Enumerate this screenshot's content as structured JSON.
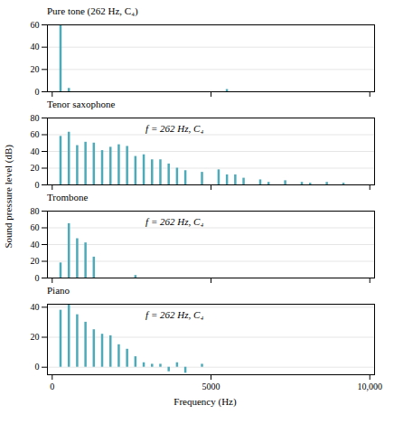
{
  "ylabel": "Sound pressure level (dB)",
  "xlabel": "Frequency (Hz)",
  "chart_data": [
    {
      "type": "bar",
      "title": "Pure tone (262 Hz, C₄)",
      "x": [
        262,
        524,
        5500
      ],
      "values": [
        60,
        3,
        2
      ],
      "color": "#4daab8",
      "xlim": [
        -150,
        10150
      ],
      "xticks": [
        0,
        5000,
        {
          "value": 10000,
          "label": "10,000"
        }
      ],
      "ylim": [
        0,
        60
      ],
      "yticks": [
        0,
        20,
        40,
        60
      ],
      "grid": true,
      "tick_labels": "y"
    },
    {
      "type": "bar",
      "title": "Tenor saxophone",
      "annotation": "f = 262 Hz, C₄",
      "x": [
        262,
        524,
        786,
        1048,
        1310,
        1572,
        1834,
        2096,
        2358,
        2620,
        2882,
        3144,
        3406,
        3668,
        3930,
        4192,
        4716,
        5240,
        5502,
        5764,
        6026,
        6550,
        6812,
        7336,
        7860,
        8122,
        8646,
        9170
      ],
      "values": [
        58,
        63,
        47,
        51,
        50,
        41,
        45,
        48,
        46,
        34,
        36,
        30,
        30,
        25,
        20,
        17,
        15,
        18,
        12,
        12,
        8,
        6,
        3,
        5,
        3,
        2,
        3,
        2
      ],
      "color": "#4daab8",
      "xlim": [
        -150,
        10150
      ],
      "xticks": [
        0,
        5000,
        {
          "value": 10000,
          "label": "10,000"
        }
      ],
      "ylim": [
        0,
        80
      ],
      "yticks": [
        0,
        20,
        40,
        60,
        80
      ],
      "grid": true,
      "tick_labels": "y"
    },
    {
      "type": "bar",
      "title": "Trombone",
      "annotation": "f = 262 Hz, C₄",
      "x": [
        262,
        524,
        786,
        1048,
        1310,
        2620
      ],
      "values": [
        18,
        65,
        47,
        42,
        25,
        3
      ],
      "color": "#4daab8",
      "xlim": [
        -150,
        10150
      ],
      "xticks": [
        0,
        5000,
        {
          "value": 10000,
          "label": "10,000"
        }
      ],
      "ylim": [
        0,
        80
      ],
      "yticks": [
        0,
        20,
        40,
        60,
        80
      ],
      "grid": true,
      "tick_labels": "y"
    },
    {
      "type": "bar",
      "title": "Piano",
      "annotation": "f = 262 Hz, C₄",
      "x": [
        262,
        524,
        786,
        1048,
        1310,
        1572,
        1834,
        2096,
        2358,
        2620,
        2882,
        3144,
        3406,
        3668,
        3930,
        4192,
        4716
      ],
      "values": [
        38,
        42,
        35,
        30,
        25,
        22,
        21,
        15,
        12,
        7,
        3,
        2,
        2,
        -3,
        3,
        -4,
        2
      ],
      "color": "#4daab8",
      "xlim": [
        -150,
        10150
      ],
      "xticks": [
        0,
        5000,
        {
          "value": 10000,
          "label": "10,000"
        }
      ],
      "ylim": [
        -5,
        42
      ],
      "yticks": [
        0,
        20,
        40
      ],
      "grid": true
    }
  ]
}
